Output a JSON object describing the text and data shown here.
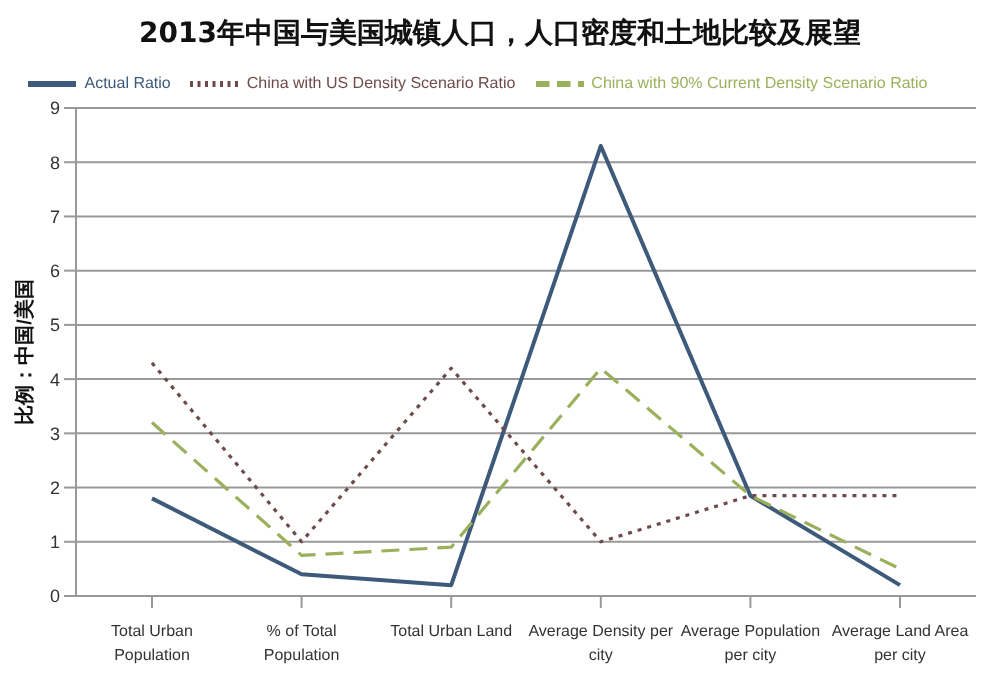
{
  "chart_data": {
    "type": "line",
    "title": "2013年中国与美国城镇人口，人口密度和土地比较及展望",
    "ylabel": "比例：中国/美国",
    "categories": [
      "Total Urban Population",
      "% of Total Population",
      "Total Urban Land",
      "Average Density per city",
      "Average Population per city",
      "Average Land Area per city"
    ],
    "series": [
      {
        "name": "Actual Ratio",
        "color": "#3d5a7a",
        "values": [
          1.8,
          0.4,
          0.2,
          8.3,
          1.85,
          0.2
        ],
        "line_style": "solid"
      },
      {
        "name": "China with US Density Scenario Ratio",
        "color": "#6e4a4a",
        "values": [
          4.3,
          1.0,
          4.2,
          1.0,
          1.85,
          1.85
        ],
        "line_style": "dotted"
      },
      {
        "name": "China with 90% Current Density Scenario Ratio",
        "color": "#9bb05a",
        "values": [
          3.2,
          0.75,
          0.9,
          4.2,
          1.85,
          0.5
        ],
        "line_style": "dashed"
      }
    ],
    "ylim": [
      0,
      9
    ],
    "yticks": [
      0,
      1,
      2,
      3,
      4,
      5,
      6,
      7,
      8,
      9
    ],
    "grid": "y",
    "legend": "top",
    "marker": "none"
  }
}
